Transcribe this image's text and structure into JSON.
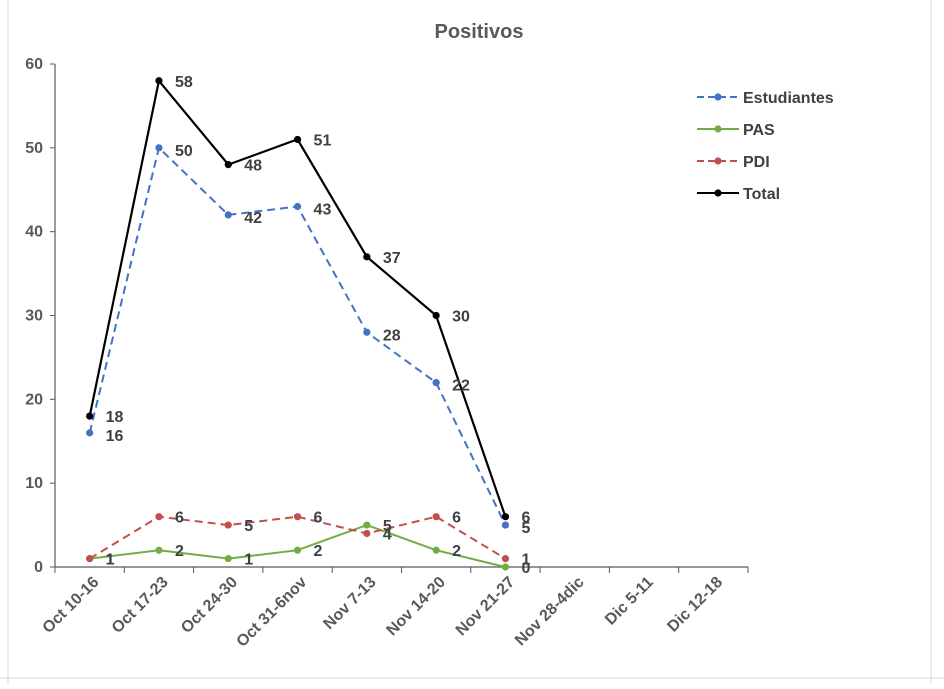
{
  "chart_data": {
    "type": "line",
    "title": "Positivos",
    "xlabel": "",
    "ylabel": "",
    "ylim": [
      0,
      60
    ],
    "yticks": [
      0,
      10,
      20,
      30,
      40,
      50,
      60
    ],
    "grid": false,
    "legend_position": "right",
    "categories": [
      "Oct 10-16",
      "Oct 17-23",
      "Oct 24-30",
      "Oct 31-6nov",
      "Nov 7-13",
      "Nov 14-20",
      "Nov 21-27",
      "Nov 28-4dic",
      "Dic 5-11",
      "Dic 12-18"
    ],
    "series": [
      {
        "name": "Estudiantes",
        "values": [
          16,
          50,
          42,
          43,
          28,
          22,
          5,
          null,
          null,
          null
        ],
        "color": "#4472C4",
        "dash": "dashed"
      },
      {
        "name": "PAS",
        "values": [
          1,
          2,
          1,
          2,
          5,
          2,
          0,
          null,
          null,
          null
        ],
        "color": "#70AD47",
        "dash": "solid"
      },
      {
        "name": "PDI",
        "values": [
          1,
          6,
          5,
          6,
          4,
          6,
          1,
          null,
          null,
          null
        ],
        "color": "#C0504D",
        "dash": "dashed"
      },
      {
        "name": "Total",
        "values": [
          18,
          58,
          48,
          51,
          37,
          30,
          6,
          null,
          null,
          null
        ],
        "color": "#000000",
        "dash": "solid"
      }
    ]
  }
}
